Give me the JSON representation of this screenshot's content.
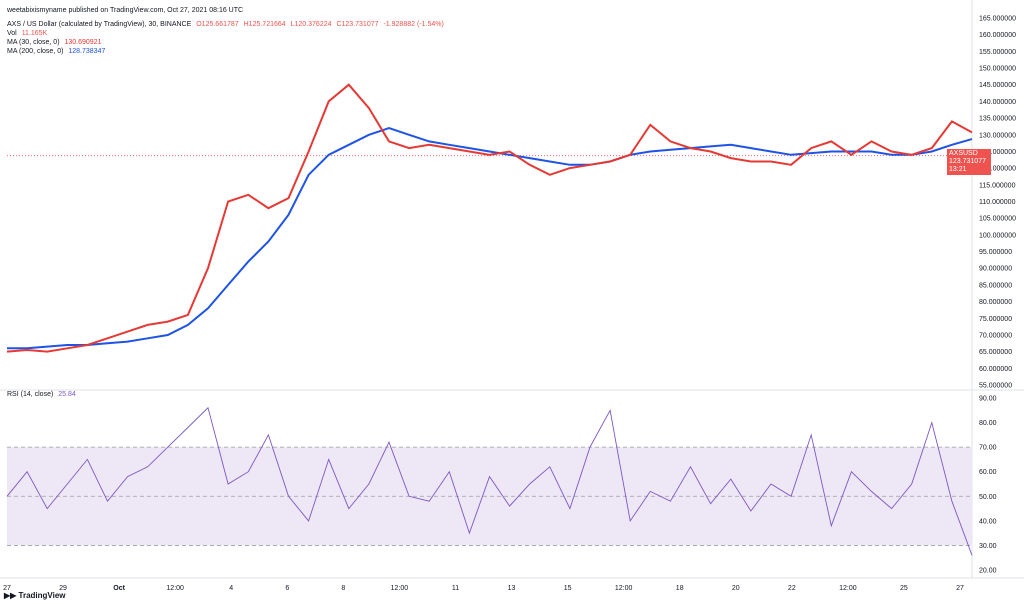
{
  "watermark": "weetabixismyname published on TradingView.com, Oct 27, 2021 08:16 UTC",
  "legend": {
    "symbol": "AXS / US Dollar (calculated by TradingView), 30, BINANCE",
    "o": "O125.661787",
    "h": "H125.721664",
    "l": "L120.376224",
    "c": "C123.731077",
    "chg": "-1.928882 (-1.54%)",
    "vol_label": "Vol",
    "vol_value": "11.165K",
    "ma30_label": "MA (30, close, 0)",
    "ma30_value": "130.690921",
    "ma200_label": "MA (200, close, 0)",
    "ma200_value": "128.738347",
    "rsi_label": "RSI (14, close)",
    "rsi_value": "25.84"
  },
  "price_tag": {
    "symbol": "AXSUSD",
    "price": "123.731077",
    "countdown": "13:21"
  },
  "colors": {
    "up": "#26a69a",
    "down": "#ef5350",
    "ma30": "#e53935",
    "ma200": "#1e53e5",
    "rsi": "#7e57c2",
    "rsi_band": "#ede7f6"
  },
  "brand": "TradingView",
  "chart_data": {
    "type": "line",
    "price_axis_ticks": [
      "165.000000",
      "160.000000",
      "155.000000",
      "150.000000",
      "145.000000",
      "140.000000",
      "135.000000",
      "130.000000",
      "125.000000",
      "120.000000",
      "115.000000",
      "110.000000",
      "105.000000",
      "100.000000",
      "95.000000",
      "90.000000",
      "85.000000",
      "80.000000",
      "75.000000",
      "70.000000",
      "65.000000",
      "60.000000",
      "55.000000"
    ],
    "rsi_axis_ticks": [
      "90.00",
      "80.00",
      "70.00",
      "60.00",
      "50.00",
      "40.00",
      "30.00",
      "20.00"
    ],
    "x_tick_labels": [
      "27",
      "29",
      "Oct",
      "12:00",
      "4",
      "6",
      "8",
      "12:00",
      "11",
      "13",
      "15",
      "12:00",
      "18",
      "20",
      "22",
      "12:00",
      "25",
      "27"
    ],
    "price_range": [
      55,
      165
    ],
    "rsi_range": [
      20,
      90
    ],
    "rsi_bands": [
      30,
      70
    ],
    "series": [
      {
        "name": "MA (30, close, 0)",
        "x": [
          0,
          20,
          40,
          60,
          80,
          100,
          120,
          140,
          160,
          180,
          200,
          220,
          240,
          260,
          280,
          300,
          320,
          340,
          360,
          380,
          400,
          420,
          440,
          460,
          480,
          500,
          520,
          540,
          560,
          580,
          600,
          620,
          640,
          660,
          680,
          700,
          720,
          740,
          760,
          780,
          800,
          820,
          840,
          860,
          880,
          900,
          920,
          940,
          960
        ],
        "values": [
          65,
          65.5,
          65,
          66,
          67,
          69,
          71,
          73,
          74,
          76,
          90,
          110,
          112,
          108,
          111,
          125,
          140,
          145,
          138,
          128,
          126,
          127,
          126,
          125,
          124,
          125,
          121,
          118,
          120,
          121,
          122,
          124,
          133,
          128,
          126,
          125,
          123,
          122,
          122,
          121,
          126,
          128,
          124,
          128,
          125,
          124,
          126,
          134,
          130.7
        ]
      },
      {
        "name": "MA (200, close, 0)",
        "x": [
          0,
          20,
          40,
          60,
          80,
          100,
          120,
          140,
          160,
          180,
          200,
          220,
          240,
          260,
          280,
          300,
          320,
          340,
          360,
          380,
          400,
          420,
          440,
          460,
          480,
          500,
          520,
          540,
          560,
          580,
          600,
          620,
          640,
          660,
          680,
          700,
          720,
          740,
          760,
          780,
          800,
          820,
          840,
          860,
          880,
          900,
          920,
          940,
          960
        ],
        "values": [
          66,
          66,
          66.5,
          67,
          67,
          67.5,
          68,
          69,
          70,
          73,
          78,
          85,
          92,
          98,
          106,
          118,
          124,
          127,
          130,
          132,
          130,
          128,
          127,
          126,
          125,
          124,
          123,
          122,
          121,
          121,
          122,
          124,
          125,
          125.5,
          126,
          126.5,
          127,
          126,
          125,
          124,
          124.5,
          125,
          125,
          125,
          124,
          124,
          125,
          127,
          128.7
        ]
      },
      {
        "name": "RSI (14, close)",
        "x": [
          0,
          20,
          40,
          60,
          80,
          100,
          120,
          140,
          160,
          180,
          200,
          220,
          240,
          260,
          280,
          300,
          320,
          340,
          360,
          380,
          400,
          420,
          440,
          460,
          480,
          500,
          520,
          540,
          560,
          580,
          600,
          620,
          640,
          660,
          680,
          700,
          720,
          740,
          760,
          780,
          800,
          820,
          840,
          860,
          880,
          900,
          920,
          940,
          960
        ],
        "values": [
          50,
          60,
          45,
          55,
          65,
          48,
          58,
          62,
          70,
          78,
          86,
          55,
          60,
          75,
          50,
          40,
          65,
          45,
          55,
          72,
          50,
          48,
          60,
          35,
          58,
          46,
          55,
          62,
          45,
          70,
          85,
          40,
          52,
          48,
          62,
          47,
          57,
          44,
          55,
          50,
          75,
          38,
          60,
          52,
          45,
          55,
          80,
          48,
          26
        ]
      }
    ]
  }
}
